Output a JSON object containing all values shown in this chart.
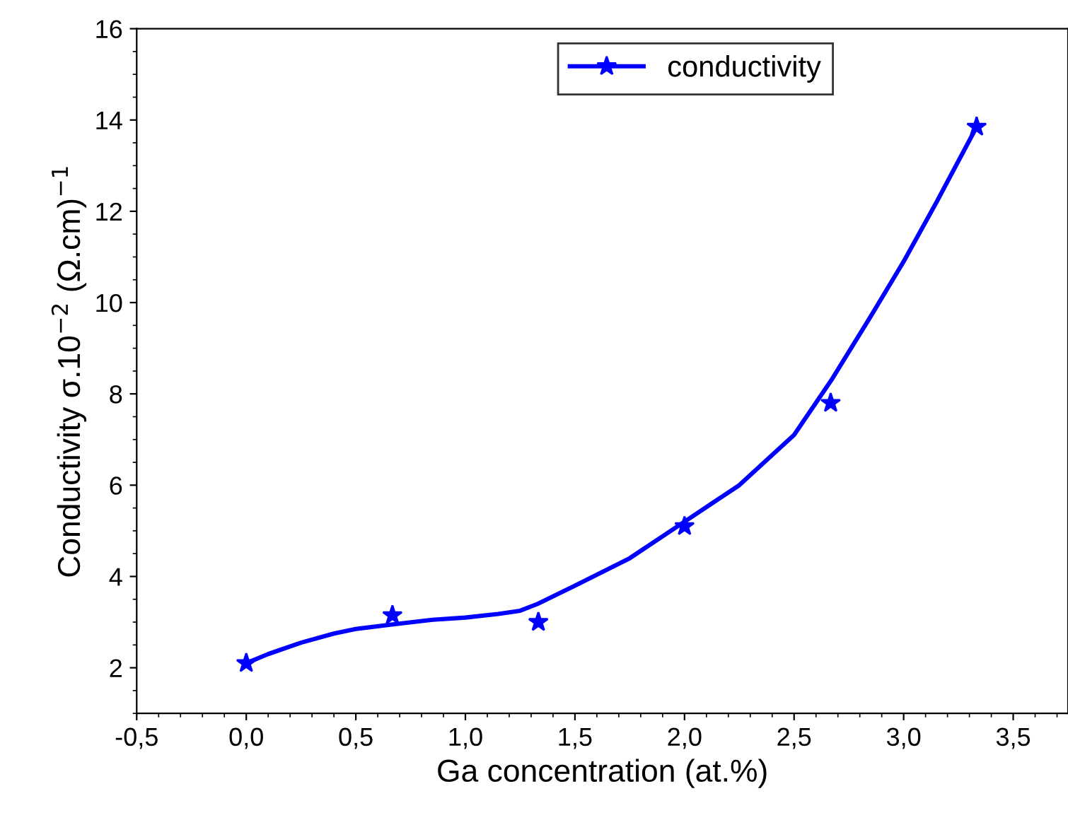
{
  "chart_data": {
    "type": "scatter",
    "xlabel": "Ga concentration (at.%)",
    "ylabel": "Conductivity σ.10$^{−2}$ (Ω.cm)$^{−1}$",
    "x": [
      0,
      0.667,
      1.333,
      2.0,
      2.667,
      3.333
    ],
    "series": [
      {
        "name": "conductivity",
        "color": "#0000ff",
        "marker": "star",
        "values": [
          2.1,
          3.15,
          3.0,
          5.1,
          7.8,
          13.85
        ]
      },
      {
        "type": "line",
        "color": "#0000ff",
        "marker": "none",
        "x": [
          0,
          0.1,
          0.25,
          0.4,
          0.5,
          0.67,
          0.85,
          1.0,
          1.15,
          1.25,
          1.33,
          1.5,
          1.75,
          2.0,
          2.25,
          2.5,
          2.67,
          2.85,
          3.0,
          3.15,
          3.333
        ],
        "values": [
          2.1,
          2.3,
          2.55,
          2.75,
          2.85,
          2.95,
          3.05,
          3.1,
          3.18,
          3.25,
          3.4,
          3.8,
          4.4,
          5.2,
          6.0,
          7.1,
          8.3,
          9.7,
          10.9,
          12.2,
          13.85
        ]
      }
    ],
    "xlim": [
      -0.5,
      3.75
    ],
    "ylim": [
      1,
      16
    ],
    "xticks": [
      {
        "value": -0.5,
        "label": "-0,5"
      },
      {
        "value": 0,
        "label": "0,0"
      },
      {
        "value": 0.5,
        "label": "0,5"
      },
      {
        "value": 1,
        "label": "1,0"
      },
      {
        "value": 1.5,
        "label": "1,5"
      },
      {
        "value": 2,
        "label": "2,0"
      },
      {
        "value": 2.5,
        "label": "2,5"
      },
      {
        "value": 3,
        "label": "3,0"
      },
      {
        "value": 3.5,
        "label": "3,5"
      }
    ],
    "yticks": [
      2,
      4,
      6,
      8,
      10,
      12,
      14,
      16
    ],
    "line_style": "solid",
    "legend": "top"
  }
}
